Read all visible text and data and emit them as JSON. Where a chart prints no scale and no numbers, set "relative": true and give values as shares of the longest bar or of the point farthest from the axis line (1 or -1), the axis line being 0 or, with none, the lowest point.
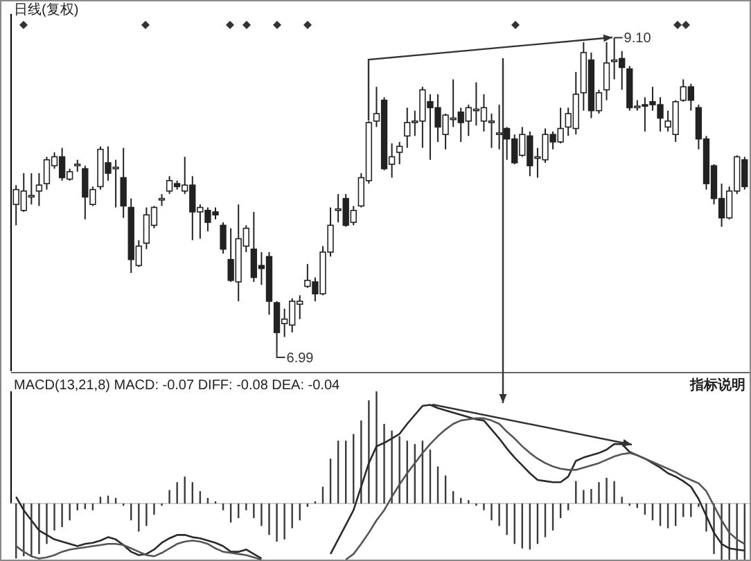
{
  "chart_data": [
    {
      "type": "candlestick",
      "title": "日线(复权)",
      "ylim": [
        6.86,
        9.26
      ],
      "categories": [
        null,
        null,
        null,
        null,
        null,
        null,
        null,
        null,
        null,
        null,
        null,
        null,
        null,
        null,
        null,
        null,
        null,
        null,
        null,
        null,
        null,
        null,
        null,
        null,
        null,
        null,
        null,
        null,
        null,
        null,
        null,
        null,
        null,
        null,
        null,
        null,
        null,
        null,
        null,
        null,
        null,
        null,
        null,
        null,
        null,
        null,
        null,
        null,
        null,
        null,
        null,
        null,
        null,
        null,
        null,
        null,
        null,
        null,
        null,
        null,
        null,
        null,
        null,
        null,
        null,
        null,
        null,
        null,
        null,
        null,
        null,
        null,
        null,
        null,
        null,
        null,
        null,
        null,
        null,
        null,
        null,
        null,
        null,
        null,
        null,
        null,
        null,
        null,
        null,
        null,
        null,
        null,
        null,
        null,
        null,
        null
      ],
      "ohlc": [
        [
          7.98,
          8.11,
          7.84,
          8.08
        ],
        [
          7.94,
          8.19,
          7.93,
          8.07
        ],
        [
          8.03,
          8.19,
          7.98,
          8.04
        ],
        [
          8.07,
          8.19,
          7.97,
          8.11
        ],
        [
          8.12,
          8.3,
          8.08,
          8.28
        ],
        [
          8.24,
          8.33,
          8.22,
          8.3
        ],
        [
          8.3,
          8.36,
          8.14,
          8.16
        ],
        [
          8.15,
          8.22,
          8.14,
          8.2
        ],
        [
          8.24,
          8.28,
          8.2,
          8.25
        ],
        [
          8.22,
          8.24,
          7.88,
          8.03
        ],
        [
          7.98,
          8.1,
          7.97,
          8.08
        ],
        [
          8.1,
          8.37,
          8.08,
          8.35
        ],
        [
          8.26,
          8.37,
          8.14,
          8.19
        ],
        [
          8.22,
          8.28,
          7.96,
          8.23
        ],
        [
          8.16,
          8.36,
          7.89,
          7.97
        ],
        [
          7.96,
          8.02,
          7.52,
          7.61
        ],
        [
          7.57,
          7.74,
          7.56,
          7.7
        ],
        [
          7.72,
          7.96,
          7.68,
          7.91
        ],
        [
          7.84,
          7.97,
          7.82,
          7.96
        ],
        [
          8.01,
          8.05,
          7.97,
          8.02
        ],
        [
          8.07,
          8.17,
          8.05,
          8.14
        ],
        [
          8.12,
          8.14,
          8.08,
          8.1
        ],
        [
          8.07,
          8.3,
          8.05,
          8.11
        ],
        [
          8.11,
          8.17,
          7.74,
          7.93
        ],
        [
          7.93,
          7.98,
          7.75,
          7.96
        ],
        [
          7.94,
          7.96,
          7.8,
          7.86
        ],
        [
          7.93,
          7.96,
          7.88,
          7.91
        ],
        [
          7.84,
          7.86,
          7.65,
          7.68
        ],
        [
          7.61,
          7.82,
          7.46,
          7.47
        ],
        [
          7.46,
          7.98,
          7.33,
          7.75
        ],
        [
          7.7,
          7.84,
          7.66,
          7.82
        ],
        [
          7.68,
          7.93,
          7.46,
          7.49
        ],
        [
          7.57,
          7.66,
          7.44,
          7.55
        ],
        [
          7.63,
          7.66,
          7.24,
          7.33
        ],
        [
          7.32,
          7.33,
          6.99,
          7.12
        ],
        [
          7.18,
          7.28,
          7.09,
          7.21
        ],
        [
          7.17,
          7.35,
          7.12,
          7.33
        ],
        [
          7.31,
          7.37,
          7.21,
          7.33
        ],
        [
          7.43,
          7.58,
          7.42,
          7.47
        ],
        [
          7.46,
          7.49,
          7.33,
          7.38
        ],
        [
          7.38,
          7.7,
          7.37,
          7.66
        ],
        [
          7.66,
          7.96,
          7.63,
          7.84
        ],
        [
          7.94,
          8.05,
          7.86,
          7.95
        ],
        [
          8.02,
          8.05,
          7.83,
          7.84
        ],
        [
          7.86,
          7.97,
          7.84,
          7.94
        ],
        [
          7.97,
          8.19,
          7.96,
          8.16
        ],
        [
          8.14,
          8.54,
          8.12,
          8.53
        ],
        [
          8.54,
          8.77,
          8.5,
          8.59
        ],
        [
          8.68,
          8.7,
          8.21,
          8.22
        ],
        [
          8.25,
          8.39,
          8.16,
          8.3
        ],
        [
          8.33,
          8.4,
          8.25,
          8.37
        ],
        [
          8.44,
          8.63,
          8.36,
          8.53
        ],
        [
          8.53,
          8.61,
          8.44,
          8.54
        ],
        [
          8.54,
          8.77,
          8.36,
          8.75
        ],
        [
          8.67,
          8.72,
          8.28,
          8.63
        ],
        [
          8.63,
          8.72,
          8.4,
          8.5
        ],
        [
          8.45,
          8.59,
          8.35,
          8.58
        ],
        [
          8.55,
          8.82,
          8.5,
          8.56
        ],
        [
          8.6,
          8.63,
          8.4,
          8.53
        ],
        [
          8.54,
          8.65,
          8.44,
          8.63
        ],
        [
          8.61,
          8.8,
          8.51,
          8.62
        ],
        [
          8.54,
          8.72,
          8.47,
          8.63
        ],
        [
          8.53,
          8.59,
          8.36,
          8.54
        ],
        [
          8.45,
          8.65,
          8.35,
          8.46
        ],
        [
          8.49,
          8.5,
          8.28,
          8.42
        ],
        [
          8.42,
          8.45,
          8.25,
          8.26
        ],
        [
          8.31,
          8.5,
          8.3,
          8.45
        ],
        [
          8.44,
          8.47,
          8.17,
          8.24
        ],
        [
          8.29,
          8.36,
          8.16,
          8.3
        ],
        [
          8.28,
          8.49,
          8.26,
          8.45
        ],
        [
          8.45,
          8.47,
          8.35,
          8.4
        ],
        [
          8.4,
          8.63,
          8.39,
          8.49
        ],
        [
          8.5,
          8.63,
          8.44,
          8.59
        ],
        [
          8.49,
          8.87,
          8.45,
          8.72
        ],
        [
          8.73,
          9.07,
          8.61,
          9.0
        ],
        [
          8.95,
          9.0,
          8.56,
          8.61
        ],
        [
          8.61,
          8.75,
          8.59,
          8.73
        ],
        [
          8.75,
          9.07,
          8.68,
          8.93
        ],
        [
          8.94,
          9.1,
          8.82,
          8.95
        ],
        [
          8.96,
          9.01,
          8.75,
          8.9
        ],
        [
          8.89,
          8.91,
          8.61,
          8.63
        ],
        [
          8.63,
          8.68,
          8.61,
          8.64
        ],
        [
          8.65,
          8.7,
          8.47,
          8.64
        ],
        [
          8.67,
          8.77,
          8.61,
          8.65
        ],
        [
          8.65,
          8.7,
          8.47,
          8.56
        ],
        [
          8.5,
          8.61,
          8.47,
          8.54
        ],
        [
          8.45,
          8.68,
          8.4,
          8.67
        ],
        [
          8.68,
          8.82,
          8.67,
          8.77
        ],
        [
          8.77,
          8.79,
          8.61,
          8.68
        ],
        [
          8.63,
          8.65,
          8.35,
          8.42
        ],
        [
          8.42,
          8.44,
          8.08,
          8.12
        ],
        [
          8.24,
          8.25,
          7.98,
          8.02
        ],
        [
          8.02,
          8.12,
          7.83,
          7.89
        ],
        [
          7.89,
          8.1,
          7.88,
          8.07
        ],
        [
          8.07,
          8.31,
          8.05,
          8.3
        ],
        [
          8.28,
          8.3,
          8.08,
          8.1
        ]
      ],
      "annotations": [
        "9.10",
        "6.99"
      ]
    },
    {
      "type": "line",
      "relative": true,
      "title": "MACD(13,21,8) MACD: -0.07 DIFF: -0.08 DEA: -0.04",
      "categories": [
        null,
        null,
        null,
        null,
        null,
        null,
        null,
        null,
        null,
        null,
        null,
        null,
        null,
        null,
        null,
        null,
        null,
        null,
        null,
        null,
        null,
        null,
        null,
        null,
        null,
        null,
        null,
        null,
        null,
        null,
        null,
        null,
        null,
        null,
        null,
        null,
        null,
        null,
        null,
        null,
        null,
        null,
        null,
        null,
        null,
        null,
        null,
        null,
        null,
        null,
        null,
        null,
        null,
        null,
        null,
        null,
        null,
        null,
        null,
        null,
        null,
        null,
        null,
        null,
        null,
        null,
        null,
        null,
        null,
        null,
        null,
        null,
        null,
        null,
        null,
        null,
        null,
        null,
        null,
        null,
        null,
        null,
        null,
        null,
        null,
        null,
        null,
        null,
        null,
        null,
        null,
        null,
        null,
        null,
        null,
        null
      ],
      "series": [
        {
          "type": "bar",
          "color": "#3a3a3a",
          "values": [
            -0.49,
            -0.47,
            -0.47,
            -0.45,
            -0.36,
            -0.24,
            -0.21,
            -0.15,
            -0.06,
            -0.05,
            -0.06,
            0.06,
            0.07,
            0.05,
            -0.02,
            -0.15,
            -0.25,
            -0.2,
            -0.1,
            -0.02,
            0.12,
            0.19,
            0.24,
            0.19,
            0.11,
            0.05,
            0.02,
            -0.06,
            -0.17,
            -0.13,
            -0.06,
            -0.13,
            -0.2,
            -0.28,
            -0.34,
            -0.32,
            -0.22,
            -0.15,
            -0.03,
            0.02,
            0.15,
            0.4,
            0.56,
            0.56,
            0.62,
            0.74,
            0.92,
            1,
            0.71,
            0.65,
            0.6,
            0.56,
            0.53,
            0.56,
            0.48,
            0.33,
            0.25,
            0.11,
            0.05,
            0.03,
            -0.02,
            -0.06,
            -0.15,
            -0.2,
            -0.28,
            -0.36,
            -0.4,
            -0.41,
            -0.36,
            -0.3,
            -0.24,
            -0.13,
            -0.06,
            0.2,
            0.12,
            0.13,
            0.19,
            0.23,
            0.2,
            0.06,
            -0.02,
            -0.04,
            -0.1,
            -0.15,
            -0.2,
            -0.22,
            -0.2,
            -0.12,
            -0.12,
            -0.03,
            -0.25,
            -0.45,
            -0.5,
            -0.5,
            -0.5,
            -0.5
          ]
        },
        {
          "type": "line",
          "color": "#2a2a2a",
          "values": [
            0.06,
            -0.06,
            -0.15,
            -0.24,
            -0.28,
            -0.32,
            -0.34,
            -0.36,
            -0.38,
            -0.36,
            -0.35,
            -0.33,
            -0.3,
            -0.32,
            -0.37,
            -0.43,
            -0.46,
            -0.45,
            -0.41,
            -0.35,
            -0.31,
            -0.28,
            -0.28,
            -0.3,
            -0.31,
            -0.33,
            -0.35,
            -0.38,
            -0.43,
            -0.43,
            -0.41,
            -0.45,
            -0.49,
            null,
            null,
            null,
            null,
            null,
            null,
            null,
            null,
            -0.45,
            -0.32,
            -0.19,
            -0.06,
            0.15,
            0.36,
            0.51,
            0.54,
            0.58,
            0.62,
            0.71,
            0.79,
            0.87,
            0.88,
            0.85,
            0.83,
            0.81,
            0.79,
            0.77,
            0.75,
            0.74,
            0.66,
            0.58,
            0.49,
            0.41,
            0.34,
            0.27,
            0.21,
            0.2,
            0.19,
            0.19,
            0.24,
            0.38,
            0.41,
            0.43,
            0.45,
            0.48,
            0.53,
            0.53,
            0.46,
            0.43,
            0.4,
            0.36,
            0.32,
            0.27,
            0.24,
            0.2,
            0.15,
            0.04,
            -0.11,
            -0.26,
            -0.36,
            -0.4,
            -0.41,
            -0.42
          ]
        },
        {
          "type": "line",
          "color": "#555555",
          "values": [
            -0.38,
            -0.43,
            -0.47,
            -0.49,
            -0.48,
            -0.46,
            -0.43,
            -0.41,
            -0.4,
            -0.39,
            -0.38,
            -0.37,
            -0.36,
            -0.36,
            -0.37,
            -0.4,
            -0.43,
            -0.46,
            -0.47,
            -0.44,
            -0.4,
            -0.36,
            -0.34,
            -0.33,
            -0.34,
            -0.36,
            -0.4,
            -0.43,
            -0.44,
            -0.45,
            -0.46,
            -0.48,
            -0.5,
            null,
            null,
            null,
            null,
            null,
            null,
            null,
            null,
            null,
            null,
            -0.5,
            -0.45,
            -0.36,
            -0.26,
            -0.15,
            -0.06,
            0.06,
            0.17,
            0.27,
            0.36,
            0.45,
            0.53,
            0.6,
            0.66,
            0.71,
            0.74,
            0.75,
            0.76,
            0.76,
            0.74,
            0.71,
            0.64,
            0.58,
            0.51,
            0.45,
            0.4,
            0.36,
            0.33,
            0.31,
            0.3,
            0.3,
            0.32,
            0.34,
            0.36,
            0.39,
            0.42,
            0.44,
            0.45,
            0.43,
            0.4,
            0.37,
            0.34,
            0.31,
            0.28,
            0.24,
            0.21,
            0.18,
            0.11,
            -0.02,
            -0.15,
            -0.26,
            -0.32,
            -0.36
          ]
        }
      ],
      "annotations": [
        "指标说明"
      ]
    }
  ]
}
